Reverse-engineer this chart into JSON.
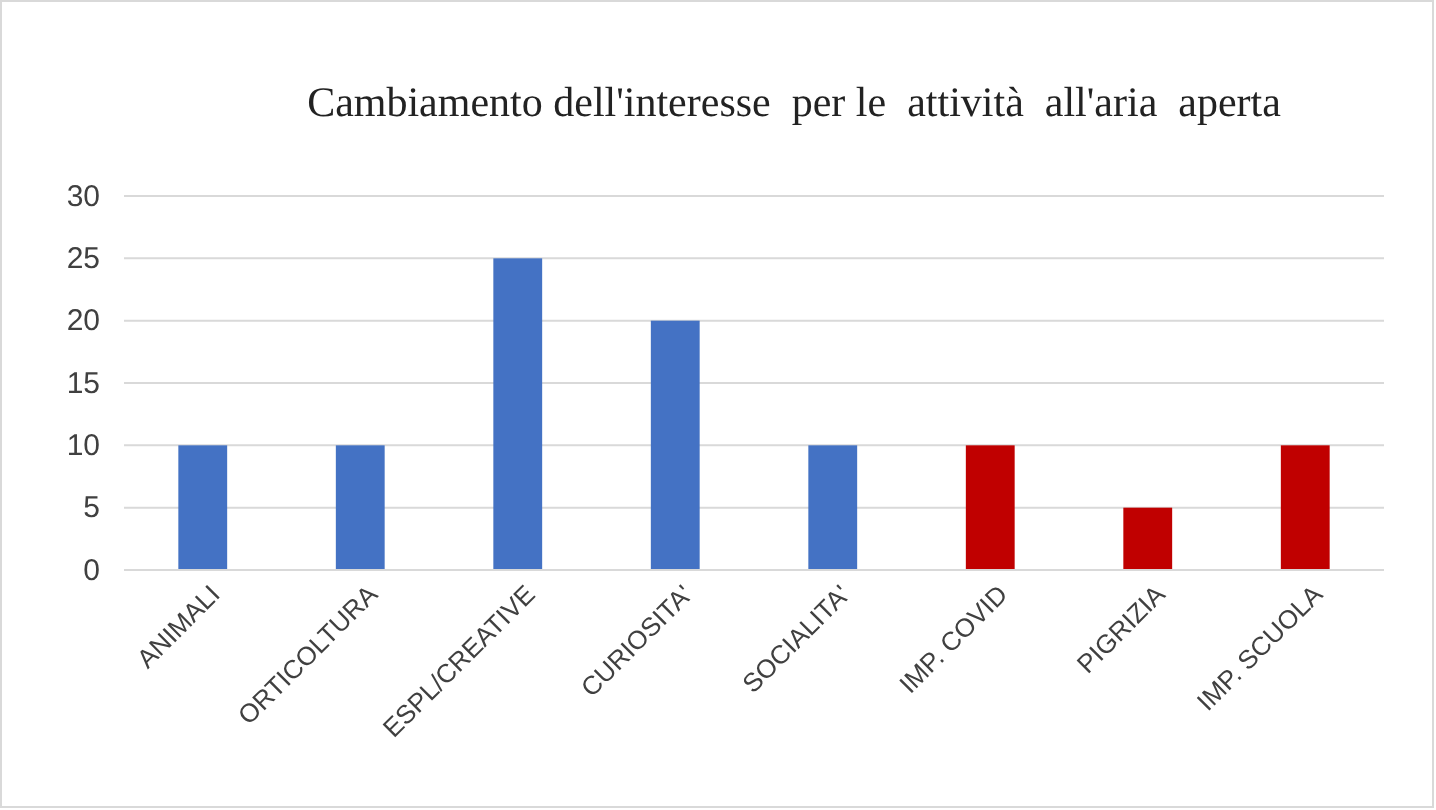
{
  "chart_data": {
    "type": "bar",
    "title": "Cambiamento dell'interesse  per le  attività  all'aria  aperta",
    "categories": [
      "ANIMALI",
      "ORTICOLTURA",
      "ESPL/CREATIVE",
      "CURIOSITA'",
      "SOCIALITA'",
      "IMP. COVID",
      "PIGRIZIA",
      "IMP. SCUOLA"
    ],
    "values": [
      10,
      10,
      25,
      20,
      10,
      10,
      5,
      10
    ],
    "colors": [
      "#4472c4",
      "#4472c4",
      "#4472c4",
      "#4472c4",
      "#4472c4",
      "#c00000",
      "#c00000",
      "#c00000"
    ],
    "ylim": [
      0,
      30
    ],
    "yticks": [
      0,
      5,
      10,
      15,
      20,
      25,
      30
    ],
    "grid": "y"
  }
}
